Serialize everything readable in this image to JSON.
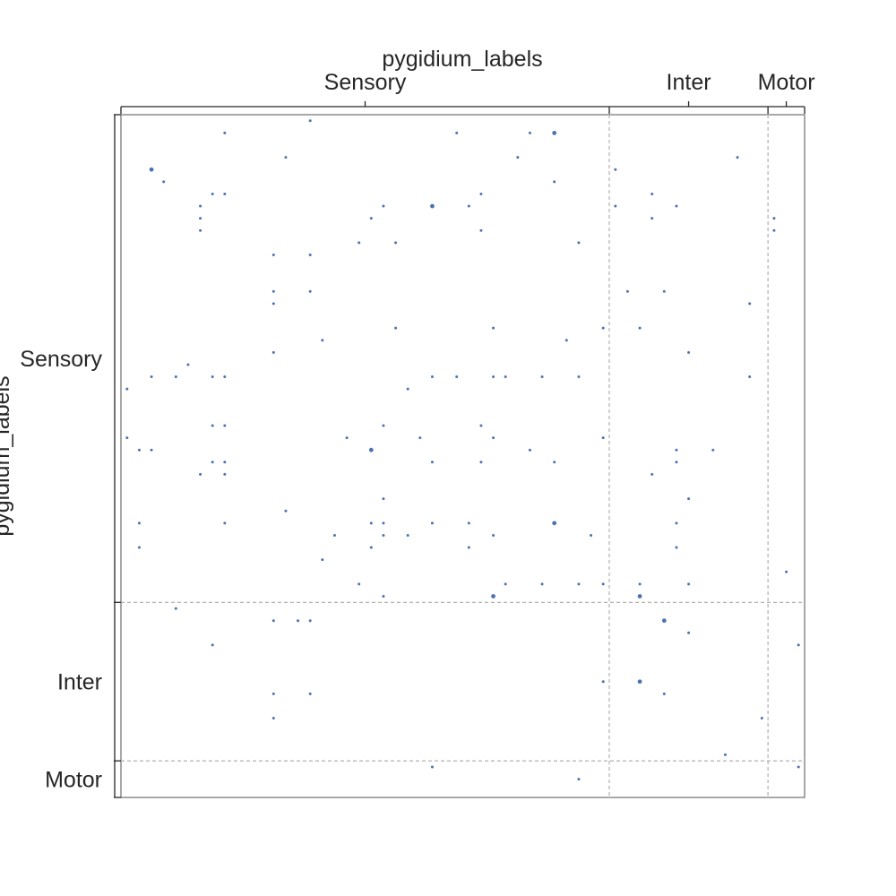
{
  "chart_data": {
    "type": "scatter",
    "title": "",
    "xlabel": "pygidium_labels",
    "ylabel": "pygidium_labels",
    "n_nodes": 56,
    "groups": [
      {
        "name": "Sensory",
        "start": 0,
        "end": 40
      },
      {
        "name": "Inter",
        "start": 40,
        "end": 53
      },
      {
        "name": "Motor",
        "start": 53,
        "end": 56
      }
    ],
    "xlim": [
      0,
      56
    ],
    "ylim": [
      56,
      0
    ],
    "grid": false,
    "dividers": "dashed gray lines at group boundaries",
    "marker_color": "#4c72b0",
    "points": [
      {
        "x": 15.5,
        "y": 0.5,
        "w": 1
      },
      {
        "x": 8.5,
        "y": 1.5,
        "w": 1
      },
      {
        "x": 27.5,
        "y": 1.5,
        "w": 1
      },
      {
        "x": 33.5,
        "y": 1.5,
        "w": 1
      },
      {
        "x": 35.5,
        "y": 1.5,
        "w": 2
      },
      {
        "x": 13.5,
        "y": 3.5,
        "w": 1
      },
      {
        "x": 32.5,
        "y": 3.5,
        "w": 1
      },
      {
        "x": 50.5,
        "y": 3.5,
        "w": 1
      },
      {
        "x": 2.5,
        "y": 4.5,
        "w": 2
      },
      {
        "x": 40.5,
        "y": 4.5,
        "w": 1
      },
      {
        "x": 3.5,
        "y": 5.5,
        "w": 1
      },
      {
        "x": 35.5,
        "y": 5.5,
        "w": 1
      },
      {
        "x": 7.5,
        "y": 6.5,
        "w": 1
      },
      {
        "x": 8.5,
        "y": 6.5,
        "w": 1
      },
      {
        "x": 29.5,
        "y": 6.5,
        "w": 1
      },
      {
        "x": 43.5,
        "y": 6.5,
        "w": 1
      },
      {
        "x": 6.5,
        "y": 7.5,
        "w": 1
      },
      {
        "x": 21.5,
        "y": 7.5,
        "w": 1
      },
      {
        "x": 25.5,
        "y": 7.5,
        "w": 2
      },
      {
        "x": 28.5,
        "y": 7.5,
        "w": 1
      },
      {
        "x": 40.5,
        "y": 7.5,
        "w": 1
      },
      {
        "x": 45.5,
        "y": 7.5,
        "w": 1
      },
      {
        "x": 6.5,
        "y": 8.5,
        "w": 1
      },
      {
        "x": 20.5,
        "y": 8.5,
        "w": 1
      },
      {
        "x": 43.5,
        "y": 8.5,
        "w": 1
      },
      {
        "x": 53.5,
        "y": 8.5,
        "w": 1
      },
      {
        "x": 6.5,
        "y": 9.5,
        "w": 1
      },
      {
        "x": 29.5,
        "y": 9.5,
        "w": 1
      },
      {
        "x": 53.5,
        "y": 9.5,
        "w": 1
      },
      {
        "x": 19.5,
        "y": 10.5,
        "w": 1
      },
      {
        "x": 22.5,
        "y": 10.5,
        "w": 1
      },
      {
        "x": 37.5,
        "y": 10.5,
        "w": 1
      },
      {
        "x": 12.5,
        "y": 11.5,
        "w": 1
      },
      {
        "x": 15.5,
        "y": 11.5,
        "w": 1
      },
      {
        "x": 12.5,
        "y": 14.5,
        "w": 1
      },
      {
        "x": 15.5,
        "y": 14.5,
        "w": 1
      },
      {
        "x": 41.5,
        "y": 14.5,
        "w": 1
      },
      {
        "x": 44.5,
        "y": 14.5,
        "w": 1
      },
      {
        "x": 12.5,
        "y": 15.5,
        "w": 1
      },
      {
        "x": 51.5,
        "y": 15.5,
        "w": 1
      },
      {
        "x": 22.5,
        "y": 17.5,
        "w": 1
      },
      {
        "x": 30.5,
        "y": 17.5,
        "w": 1
      },
      {
        "x": 39.5,
        "y": 17.5,
        "w": 1
      },
      {
        "x": 42.5,
        "y": 17.5,
        "w": 1
      },
      {
        "x": 16.5,
        "y": 18.5,
        "w": 1
      },
      {
        "x": 36.5,
        "y": 18.5,
        "w": 1
      },
      {
        "x": 12.5,
        "y": 19.5,
        "w": 1
      },
      {
        "x": 46.5,
        "y": 19.5,
        "w": 1
      },
      {
        "x": 5.5,
        "y": 20.5,
        "w": 1
      },
      {
        "x": 2.5,
        "y": 21.5,
        "w": 1
      },
      {
        "x": 4.5,
        "y": 21.5,
        "w": 1
      },
      {
        "x": 7.5,
        "y": 21.5,
        "w": 1
      },
      {
        "x": 8.5,
        "y": 21.5,
        "w": 1
      },
      {
        "x": 25.5,
        "y": 21.5,
        "w": 1
      },
      {
        "x": 27.5,
        "y": 21.5,
        "w": 1
      },
      {
        "x": 30.5,
        "y": 21.5,
        "w": 1
      },
      {
        "x": 31.5,
        "y": 21.5,
        "w": 1
      },
      {
        "x": 34.5,
        "y": 21.5,
        "w": 1
      },
      {
        "x": 37.5,
        "y": 21.5,
        "w": 1
      },
      {
        "x": 51.5,
        "y": 21.5,
        "w": 1
      },
      {
        "x": 0.5,
        "y": 22.5,
        "w": 1
      },
      {
        "x": 23.5,
        "y": 22.5,
        "w": 1
      },
      {
        "x": 7.5,
        "y": 25.5,
        "w": 1
      },
      {
        "x": 8.5,
        "y": 25.5,
        "w": 1
      },
      {
        "x": 21.5,
        "y": 25.5,
        "w": 1
      },
      {
        "x": 29.5,
        "y": 25.5,
        "w": 1
      },
      {
        "x": 0.5,
        "y": 26.5,
        "w": 1
      },
      {
        "x": 18.5,
        "y": 26.5,
        "w": 1
      },
      {
        "x": 24.5,
        "y": 26.5,
        "w": 1
      },
      {
        "x": 30.5,
        "y": 26.5,
        "w": 1
      },
      {
        "x": 39.5,
        "y": 26.5,
        "w": 1
      },
      {
        "x": 1.5,
        "y": 27.5,
        "w": 1
      },
      {
        "x": 2.5,
        "y": 27.5,
        "w": 1
      },
      {
        "x": 20.5,
        "y": 27.5,
        "w": 2
      },
      {
        "x": 33.5,
        "y": 27.5,
        "w": 1
      },
      {
        "x": 45.5,
        "y": 27.5,
        "w": 1
      },
      {
        "x": 48.5,
        "y": 27.5,
        "w": 1
      },
      {
        "x": 7.5,
        "y": 28.5,
        "w": 1
      },
      {
        "x": 8.5,
        "y": 28.5,
        "w": 1
      },
      {
        "x": 25.5,
        "y": 28.5,
        "w": 1
      },
      {
        "x": 29.5,
        "y": 28.5,
        "w": 1
      },
      {
        "x": 35.5,
        "y": 28.5,
        "w": 1
      },
      {
        "x": 45.5,
        "y": 28.5,
        "w": 1
      },
      {
        "x": 6.5,
        "y": 29.5,
        "w": 1
      },
      {
        "x": 8.5,
        "y": 29.5,
        "w": 1
      },
      {
        "x": 43.5,
        "y": 29.5,
        "w": 1
      },
      {
        "x": 21.5,
        "y": 31.5,
        "w": 1
      },
      {
        "x": 46.5,
        "y": 31.5,
        "w": 1
      },
      {
        "x": 13.5,
        "y": 32.5,
        "w": 1
      },
      {
        "x": 1.5,
        "y": 33.5,
        "w": 1
      },
      {
        "x": 8.5,
        "y": 33.5,
        "w": 1
      },
      {
        "x": 20.5,
        "y": 33.5,
        "w": 1
      },
      {
        "x": 21.5,
        "y": 33.5,
        "w": 1
      },
      {
        "x": 25.5,
        "y": 33.5,
        "w": 1
      },
      {
        "x": 28.5,
        "y": 33.5,
        "w": 1
      },
      {
        "x": 35.5,
        "y": 33.5,
        "w": 2
      },
      {
        "x": 45.5,
        "y": 33.5,
        "w": 1
      },
      {
        "x": 17.5,
        "y": 34.5,
        "w": 1
      },
      {
        "x": 21.5,
        "y": 34.5,
        "w": 1
      },
      {
        "x": 23.5,
        "y": 34.5,
        "w": 1
      },
      {
        "x": 30.5,
        "y": 34.5,
        "w": 1
      },
      {
        "x": 38.5,
        "y": 34.5,
        "w": 1
      },
      {
        "x": 1.5,
        "y": 35.5,
        "w": 1
      },
      {
        "x": 20.5,
        "y": 35.5,
        "w": 1
      },
      {
        "x": 28.5,
        "y": 35.5,
        "w": 1
      },
      {
        "x": 45.5,
        "y": 35.5,
        "w": 1
      },
      {
        "x": 16.5,
        "y": 36.5,
        "w": 1
      },
      {
        "x": 54.5,
        "y": 37.5,
        "w": 1
      },
      {
        "x": 19.5,
        "y": 38.5,
        "w": 1
      },
      {
        "x": 31.5,
        "y": 38.5,
        "w": 1
      },
      {
        "x": 34.5,
        "y": 38.5,
        "w": 1
      },
      {
        "x": 37.5,
        "y": 38.5,
        "w": 1
      },
      {
        "x": 39.5,
        "y": 38.5,
        "w": 1
      },
      {
        "x": 42.5,
        "y": 38.5,
        "w": 1
      },
      {
        "x": 46.5,
        "y": 38.5,
        "w": 1
      },
      {
        "x": 21.5,
        "y": 39.5,
        "w": 1
      },
      {
        "x": 30.5,
        "y": 39.5,
        "w": 2
      },
      {
        "x": 42.5,
        "y": 39.5,
        "w": 2
      },
      {
        "x": 4.5,
        "y": 40.5,
        "w": 1
      },
      {
        "x": 12.5,
        "y": 41.5,
        "w": 1
      },
      {
        "x": 14.5,
        "y": 41.5,
        "w": 1
      },
      {
        "x": 15.5,
        "y": 41.5,
        "w": 1
      },
      {
        "x": 44.5,
        "y": 41.5,
        "w": 2
      },
      {
        "x": 46.5,
        "y": 42.5,
        "w": 1
      },
      {
        "x": 7.5,
        "y": 43.5,
        "w": 1
      },
      {
        "x": 55.5,
        "y": 43.5,
        "w": 1
      },
      {
        "x": 39.5,
        "y": 46.5,
        "w": 1
      },
      {
        "x": 42.5,
        "y": 46.5,
        "w": 2
      },
      {
        "x": 12.5,
        "y": 47.5,
        "w": 1
      },
      {
        "x": 15.5,
        "y": 47.5,
        "w": 1
      },
      {
        "x": 44.5,
        "y": 47.5,
        "w": 1
      },
      {
        "x": 12.5,
        "y": 49.5,
        "w": 1
      },
      {
        "x": 52.5,
        "y": 49.5,
        "w": 1
      },
      {
        "x": 49.5,
        "y": 52.5,
        "w": 1
      },
      {
        "x": 25.5,
        "y": 53.5,
        "w": 1
      },
      {
        "x": 55.5,
        "y": 53.5,
        "w": 1
      },
      {
        "x": 37.5,
        "y": 54.5,
        "w": 1
      }
    ]
  }
}
